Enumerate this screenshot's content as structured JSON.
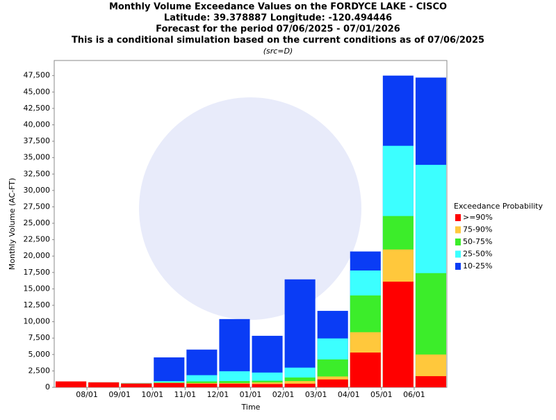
{
  "chart_data": {
    "type": "bar",
    "title": [
      "Monthly Volume Exceedance Values on the FORDYCE LAKE - CISCO",
      "Latitude: 39.378887 Longitude: -120.494446",
      "Forecast for the period 07/06/2025 - 07/01/2026",
      "This is a conditional simulation based on the current conditions as of 07/06/2025"
    ],
    "subtitle": "(src=D)",
    "x_label": "Time",
    "y_label": "Monthly Volume (AC-FT)",
    "x_tick_labels": [
      "08/01",
      "09/01",
      "10/01",
      "11/01",
      "12/01",
      "01/01",
      "02/01",
      "03/01",
      "04/01",
      "05/01",
      "06/01"
    ],
    "legend_title": "Exceedance Probability",
    "series": [
      {
        "name": ">=90%",
        "color": "#ff0000",
        "values": [
          900,
          750,
          550,
          650,
          550,
          550,
          500,
          550,
          1200,
          5300,
          16100,
          1700
        ]
      },
      {
        "name": "75-90%",
        "color": "#ffc83c",
        "values": [
          900,
          750,
          600,
          700,
          650,
          650,
          750,
          950,
          1650,
          8400,
          21000,
          5000
        ]
      },
      {
        "name": "50-75%",
        "color": "#3ced2a",
        "values": [
          900,
          750,
          600,
          750,
          900,
          950,
          1000,
          1500,
          4250,
          14000,
          26100,
          17400
        ]
      },
      {
        "name": "25-50%",
        "color": "#3cffff",
        "values": [
          900,
          750,
          600,
          950,
          1850,
          2450,
          2250,
          3000,
          7450,
          17800,
          36800,
          33900
        ]
      },
      {
        "name": "10-25%",
        "color": "#0a3cf5",
        "values": [
          900,
          750,
          650,
          4560,
          5750,
          10400,
          7850,
          16450,
          11650,
          20700,
          47500,
          47200
        ]
      }
    ],
    "ylim": [
      0,
      49800
    ],
    "yticks": [
      0,
      {
        "value": 2500,
        "label": "2,500"
      },
      {
        "value": 5000,
        "label": "5,000"
      },
      {
        "value": 7500,
        "label": "7,500"
      },
      {
        "value": 10000,
        "label": "10,000"
      },
      {
        "value": 12500,
        "label": "12,500"
      },
      {
        "value": 15000,
        "label": "15,000"
      },
      {
        "value": 17500,
        "label": "17,500"
      },
      {
        "value": 20000,
        "label": "20,000"
      },
      {
        "value": 22500,
        "label": "22,500"
      },
      {
        "value": 25000,
        "label": "25,000"
      },
      {
        "value": 27500,
        "label": "27,500"
      },
      {
        "value": 30000,
        "label": "30,000"
      },
      {
        "value": 32500,
        "label": "32,500"
      },
      {
        "value": 35000,
        "label": "35,000"
      },
      {
        "value": 37500,
        "label": "37,500"
      },
      {
        "value": 40000,
        "label": "40,000"
      },
      {
        "value": 42500,
        "label": "42,500"
      },
      {
        "value": 45000,
        "label": "45,000"
      },
      {
        "value": 47500,
        "label": "47,500"
      }
    ],
    "grid": false
  }
}
